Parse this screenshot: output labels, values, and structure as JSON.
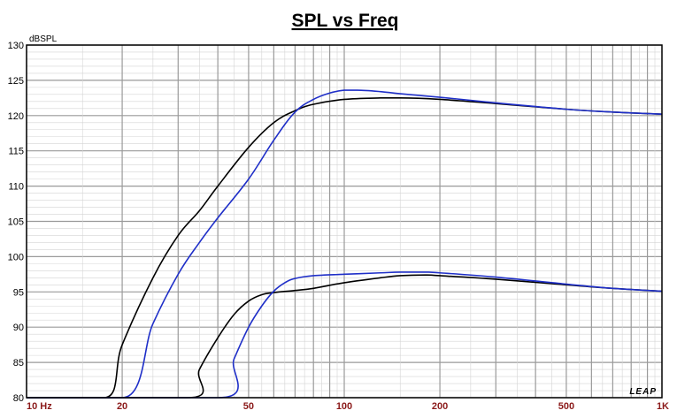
{
  "chart_data": {
    "type": "line",
    "title": "SPL vs Freq",
    "ylabel": "dBSPL",
    "xlabel": "",
    "xscale": "log",
    "xlim": [
      10,
      1000
    ],
    "ylim": [
      80,
      130
    ],
    "grid": true,
    "y_ticks": [
      80,
      85,
      90,
      95,
      100,
      105,
      110,
      115,
      120,
      125,
      130
    ],
    "x_ticks": [
      {
        "value": 10,
        "label": "10  Hz"
      },
      {
        "value": 20,
        "label": "20"
      },
      {
        "value": 50,
        "label": "50"
      },
      {
        "value": 100,
        "label": "100"
      },
      {
        "value": 200,
        "label": "200"
      },
      {
        "value": 500,
        "label": "500"
      },
      {
        "value": 1000,
        "label": "1K"
      }
    ],
    "series": [
      {
        "color": "#000000",
        "x": [
          10,
          17.5,
          20,
          25,
          30,
          35,
          40,
          50,
          60,
          70,
          80,
          100,
          130,
          150,
          200,
          300,
          500,
          700,
          1000
        ],
        "y": [
          80,
          80,
          87.5,
          97,
          103,
          106.5,
          110,
          115.5,
          119,
          120.7,
          121.6,
          122.3,
          122.5,
          122.5,
          122.3,
          121.7,
          120.9,
          120.5,
          120.2
        ]
      },
      {
        "color": "#1f2fc8",
        "x": [
          10,
          20,
          25,
          30,
          35,
          40,
          50,
          60,
          70,
          80,
          90,
          100,
          110,
          130,
          150,
          200,
          300,
          500,
          700,
          1000
        ],
        "y": [
          80,
          80,
          90.5,
          97.5,
          102,
          105.5,
          111,
          116.5,
          120.5,
          122.3,
          123.2,
          123.6,
          123.6,
          123.4,
          123.1,
          122.6,
          121.8,
          120.9,
          120.5,
          120.2
        ]
      },
      {
        "color": "#000000",
        "x": [
          10,
          32,
          35,
          40,
          45,
          50,
          55,
          60,
          70,
          80,
          100,
          130,
          150,
          180,
          200,
          300,
          500,
          700,
          1000
        ],
        "y": [
          80,
          80,
          84,
          88.5,
          91.8,
          93.7,
          94.6,
          94.9,
          95.2,
          95.5,
          96.3,
          97.0,
          97.3,
          97.4,
          97.3,
          96.8,
          96.0,
          95.5,
          95.1
        ]
      },
      {
        "color": "#1f2fc8",
        "x": [
          10,
          40,
          45,
          50,
          55,
          60,
          65,
          70,
          80,
          100,
          130,
          150,
          180,
          200,
          300,
          500,
          700,
          1000
        ],
        "y": [
          80,
          80,
          85.5,
          90,
          93,
          95.1,
          96.3,
          96.9,
          97.3,
          97.5,
          97.7,
          97.8,
          97.8,
          97.7,
          97.1,
          96.1,
          95.5,
          95.1
        ]
      }
    ],
    "logo_text": "LEAP"
  }
}
